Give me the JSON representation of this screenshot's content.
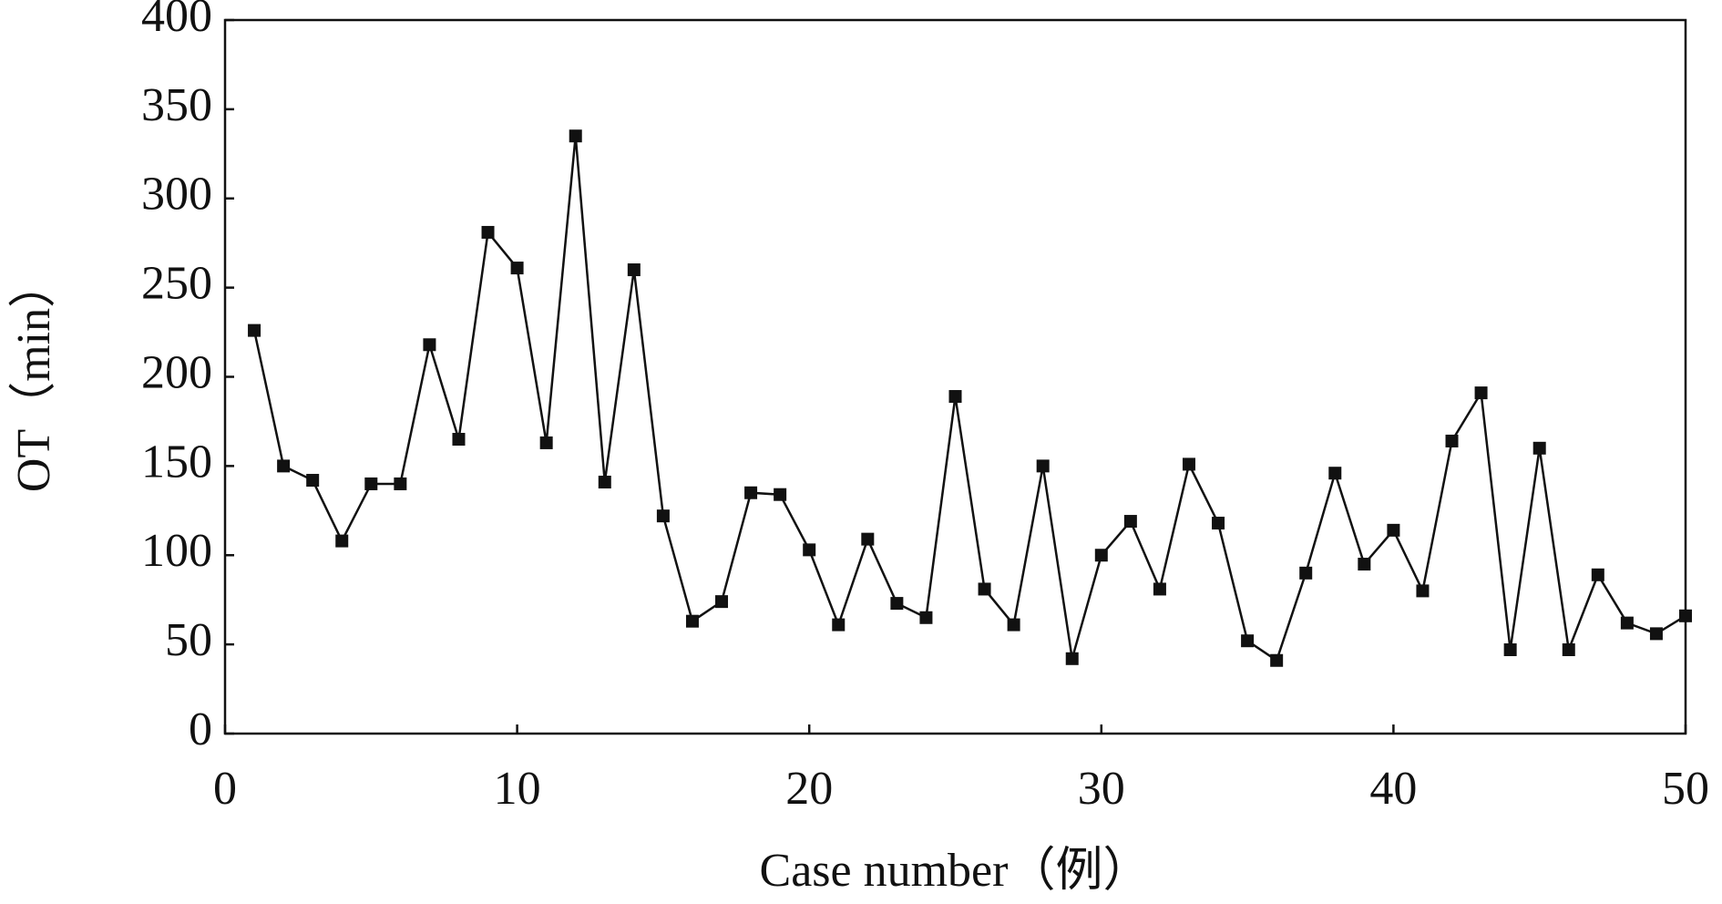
{
  "chart_data": {
    "type": "line",
    "xlabel": "Case number（例）",
    "ylabel": "OT（min）",
    "x": [
      1,
      2,
      3,
      4,
      5,
      6,
      7,
      8,
      9,
      10,
      11,
      12,
      13,
      14,
      15,
      16,
      17,
      18,
      19,
      20,
      21,
      22,
      23,
      24,
      25,
      26,
      27,
      28,
      29,
      30,
      31,
      32,
      33,
      34,
      35,
      36,
      37,
      38,
      39,
      40,
      41,
      42,
      43,
      44,
      45,
      46,
      47,
      48,
      49,
      50
    ],
    "series": [
      {
        "color": "#111111",
        "values": [
          226,
          150,
          142,
          108,
          140,
          140,
          218,
          165,
          281,
          261,
          163,
          335,
          141,
          260,
          122,
          63,
          74,
          135,
          134,
          103,
          61,
          109,
          73,
          65,
          189,
          81,
          61,
          150,
          42,
          100,
          119,
          81,
          151,
          118,
          52,
          41,
          90,
          146,
          95,
          114,
          80,
          164,
          191,
          47,
          160,
          47,
          89,
          62,
          56,
          66
        ]
      }
    ],
    "xlim": [
      0,
      50
    ],
    "xticks": [
      0,
      10,
      20,
      30,
      40,
      50
    ],
    "ylim": [
      0,
      400
    ],
    "yticks": [
      0,
      50,
      100,
      150,
      200,
      250,
      300,
      350,
      400
    ]
  }
}
